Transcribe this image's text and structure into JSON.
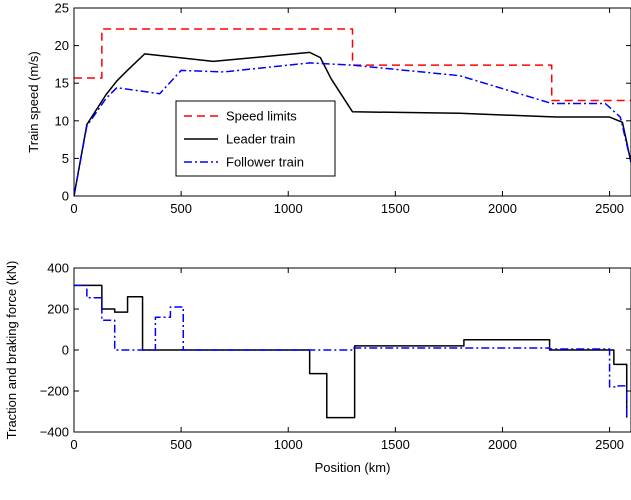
{
  "chart_data": [
    {
      "type": "line",
      "xlabel": "",
      "ylabel": "Train speed (m/s)",
      "xlim": [
        0,
        2600
      ],
      "ylim": [
        0,
        25
      ],
      "xticks": [
        0,
        500,
        1000,
        1500,
        2000,
        2500
      ],
      "xtick_labels": [
        "0",
        "500",
        "1000",
        "1500",
        "2000",
        "2500"
      ],
      "yticks": [
        0,
        5,
        10,
        15,
        20,
        25
      ],
      "ytick_labels": [
        "0",
        "5",
        "10",
        "15",
        "20",
        "25"
      ],
      "grid": false,
      "legend_position": "center-left",
      "series": [
        {
          "name": "Speed limits",
          "color": "#ff0000",
          "style": "dashed",
          "x": [
            0,
            130,
            130,
            1300,
            1300,
            2230,
            2230,
            2600
          ],
          "y": [
            15.7,
            15.7,
            22.2,
            22.2,
            17.4,
            17.4,
            12.7,
            12.7
          ]
        },
        {
          "name": "Leader train",
          "color": "#000000",
          "style": "solid",
          "x": [
            0,
            60,
            150,
            200,
            260,
            330,
            650,
            1100,
            1150,
            1200,
            1300,
            1800,
            2250,
            2500,
            2560,
            2600
          ],
          "y": [
            0,
            9.5,
            13.5,
            15.3,
            17.0,
            18.9,
            17.9,
            19.1,
            18.4,
            15.6,
            11.2,
            11.0,
            10.5,
            10.5,
            9.8,
            4.5
          ]
        },
        {
          "name": "Follower train",
          "color": "#0000ff",
          "style": "dashdot",
          "x": [
            0,
            60,
            150,
            200,
            400,
            500,
            700,
            1100,
            1300,
            1800,
            2230,
            2480,
            2550,
            2600
          ],
          "y": [
            0,
            9.3,
            13.0,
            14.4,
            13.6,
            16.7,
            16.5,
            17.7,
            17.4,
            16.0,
            12.3,
            12.3,
            10.5,
            4.5
          ]
        }
      ]
    },
    {
      "type": "line",
      "xlabel": "Position (km)",
      "ylabel": "Traction and braking force (kN)",
      "xlim": [
        0,
        2600
      ],
      "ylim": [
        -400,
        400
      ],
      "xticks": [
        0,
        500,
        1000,
        1500,
        2000,
        2500
      ],
      "xtick_labels": [
        "0",
        "500",
        "1000",
        "1500",
        "2000",
        "2500"
      ],
      "yticks": [
        -400,
        -200,
        0,
        200,
        400
      ],
      "ytick_labels": [
        "−400",
        "−200",
        "0",
        "200",
        "400"
      ],
      "grid": false,
      "series": [
        {
          "name": "",
          "color": "#000000",
          "style": "solid",
          "x": [
            0,
            130,
            130,
            190,
            190,
            250,
            250,
            320,
            320,
            1100,
            1100,
            1180,
            1180,
            1310,
            1310,
            1820,
            1820,
            2220,
            2220,
            2520,
            2520,
            2580,
            2580
          ],
          "y": [
            315,
            315,
            200,
            200,
            185,
            185,
            260,
            260,
            0,
            0,
            -115,
            -115,
            -330,
            -330,
            20,
            20,
            50,
            50,
            0,
            0,
            -70,
            -70,
            -330
          ]
        },
        {
          "name": "",
          "color": "#0000ff",
          "style": "dashdot",
          "x": [
            0,
            60,
            60,
            130,
            130,
            190,
            190,
            380,
            380,
            450,
            450,
            510,
            510,
            1300,
            1300,
            2220,
            2220,
            2500,
            2500,
            2540,
            2540,
            2580,
            2580
          ],
          "y": [
            315,
            315,
            255,
            255,
            145,
            145,
            0,
            0,
            160,
            160,
            210,
            210,
            0,
            0,
            10,
            10,
            5,
            5,
            -180,
            -180,
            -175,
            -175,
            -330
          ]
        }
      ]
    }
  ]
}
